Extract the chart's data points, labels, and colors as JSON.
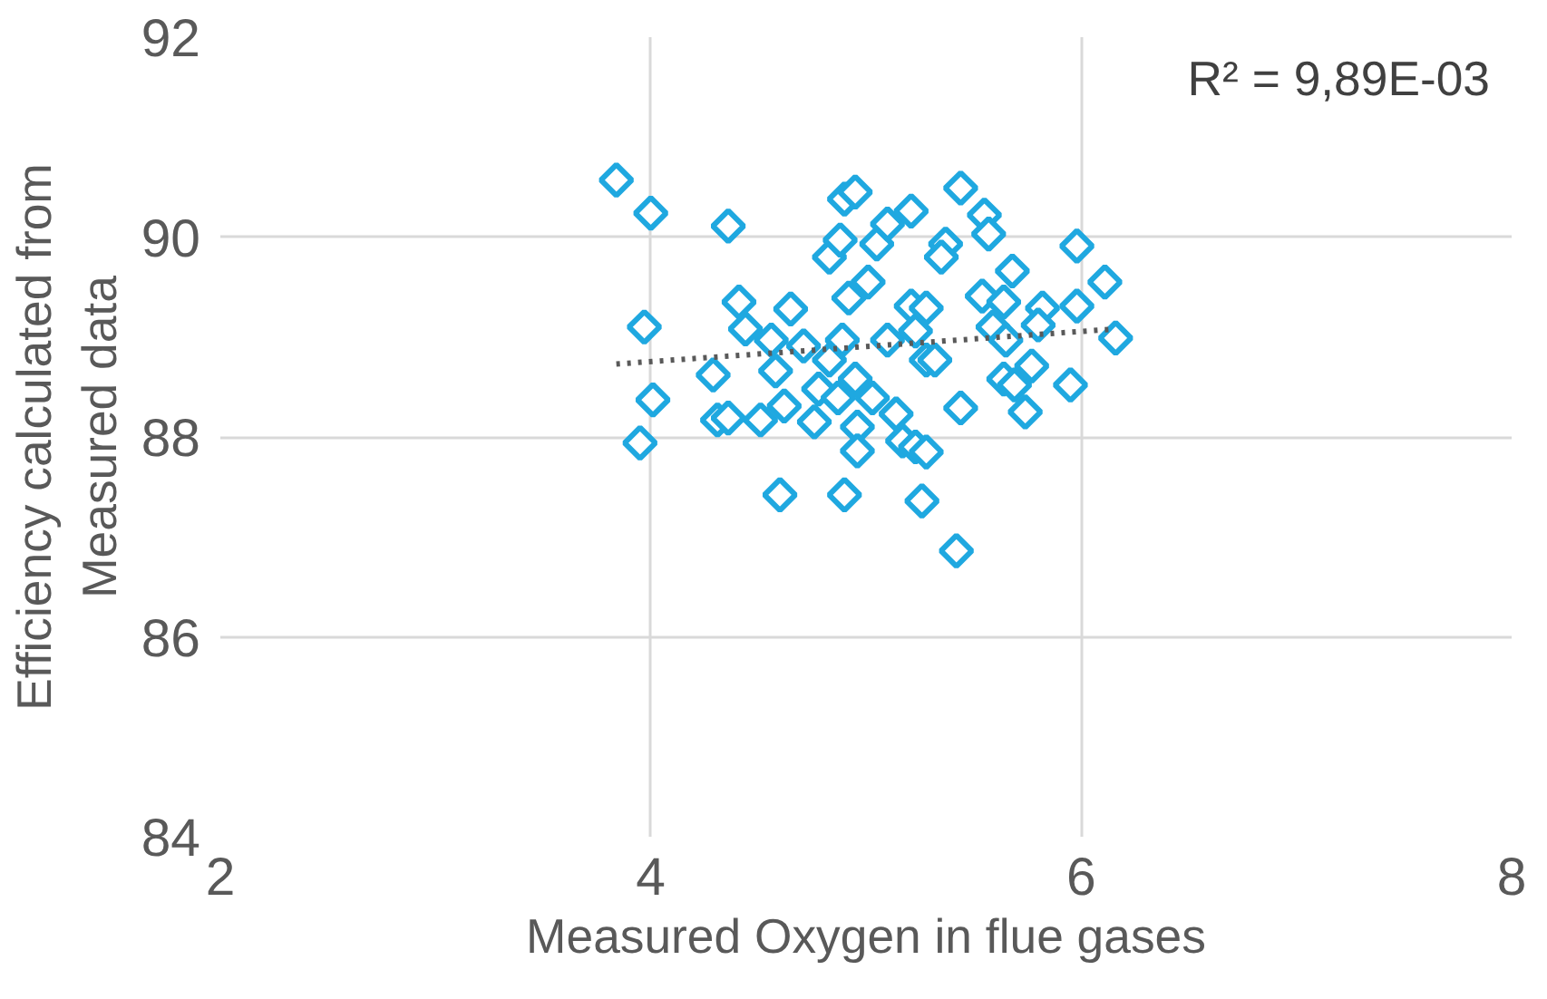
{
  "chart_data": {
    "type": "scatter",
    "xlabel": "Measured Oxygen in flue gases",
    "ylabel": "Efficiency calculated from Measured data",
    "xlim": [
      2,
      8
    ],
    "ylim": [
      84,
      92
    ],
    "xticks": [
      2,
      4,
      6,
      8
    ],
    "yticks": [
      84,
      86,
      88,
      90,
      92
    ],
    "grid": true,
    "annotations": [
      "R² = 9,89E-03"
    ],
    "series": [
      {
        "color": "#1fa8e0",
        "marker": "diamond",
        "x": [
          3.84,
          4.0,
          4.36,
          3.97,
          4.01,
          3.95,
          4.41,
          4.44,
          4.29,
          4.31,
          4.36,
          4.51,
          4.65,
          4.56,
          4.58,
          4.62,
          4.6,
          4.71,
          4.78,
          4.76,
          4.83,
          4.87,
          4.9,
          4.83,
          4.9,
          4.95,
          4.88,
          4.92,
          4.89,
          4.95,
          4.96,
          4.96,
          5.01,
          5.05,
          5.1,
          5.03,
          5.1,
          5.14,
          5.17,
          5.21,
          5.21,
          5.23,
          5.28,
          5.28,
          5.23,
          5.28,
          5.26,
          5.37,
          5.35,
          5.32,
          5.44,
          5.44,
          5.42,
          5.55,
          5.57,
          5.54,
          5.59,
          5.64,
          5.68,
          5.65,
          5.64,
          5.69,
          5.74,
          5.77,
          5.82,
          5.8,
          5.95,
          5.98,
          5.98,
          6.11,
          6.16
        ],
        "values": [
          90.57,
          90.24,
          90.11,
          89.1,
          88.37,
          87.94,
          89.35,
          89.08,
          88.62,
          88.17,
          88.19,
          88.17,
          89.28,
          88.97,
          88.66,
          88.31,
          87.42,
          88.91,
          88.48,
          88.15,
          88.77,
          88.39,
          87.42,
          89.8,
          90.38,
          90.45,
          89.97,
          89.39,
          88.97,
          88.58,
          88.1,
          87.86,
          89.55,
          89.93,
          90.13,
          88.39,
          88.97,
          88.23,
          87.96,
          90.26,
          89.31,
          89.06,
          89.29,
          88.77,
          87.9,
          87.85,
          87.36,
          89.93,
          89.8,
          88.77,
          90.49,
          88.29,
          86.86,
          90.22,
          90.03,
          89.41,
          89.1,
          89.35,
          89.66,
          88.97,
          88.58,
          88.52,
          88.25,
          88.71,
          89.29,
          89.12,
          88.52,
          89.91,
          89.31,
          89.55,
          88.99
        ]
      },
      {
        "type": "line",
        "color": "#595959",
        "line_style": "dotted",
        "marker": "none",
        "x": [
          3.84,
          6.16
        ],
        "values": [
          88.73,
          89.08
        ]
      }
    ]
  }
}
